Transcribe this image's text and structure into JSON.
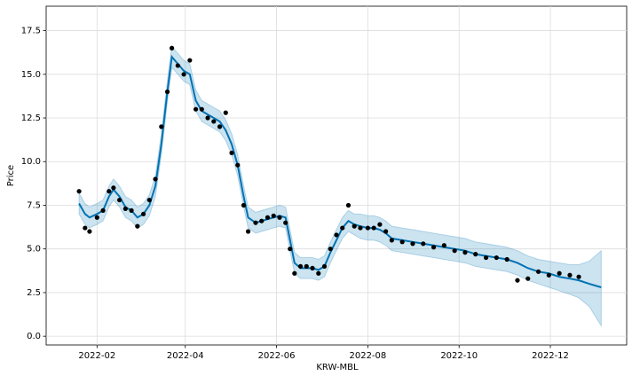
{
  "chart_data": {
    "type": "forecast",
    "xlabel": "KRW-MBL",
    "ylabel": "Price",
    "x": [
      "2022-01-20",
      "2022-01-24",
      "2022-01-27",
      "2022-02-01",
      "2022-02-05",
      "2022-02-09",
      "2022-02-12",
      "2022-02-16",
      "2022-02-20",
      "2022-02-24",
      "2022-02-28",
      "2022-03-04",
      "2022-03-08",
      "2022-03-12",
      "2022-03-16",
      "2022-03-20",
      "2022-03-23",
      "2022-03-27",
      "2022-03-31",
      "2022-04-04",
      "2022-04-08",
      "2022-04-12",
      "2022-04-16",
      "2022-04-20",
      "2022-04-24",
      "2022-04-28",
      "2022-05-02",
      "2022-05-06",
      "2022-05-10",
      "2022-05-13",
      "2022-05-18",
      "2022-05-22",
      "2022-05-26",
      "2022-05-30",
      "2022-06-03",
      "2022-06-07",
      "2022-06-10",
      "2022-06-13",
      "2022-06-17",
      "2022-06-21",
      "2022-06-25",
      "2022-06-29",
      "2022-07-03",
      "2022-07-07",
      "2022-07-11",
      "2022-07-15",
      "2022-07-19",
      "2022-07-23",
      "2022-07-27",
      "2022-08-01",
      "2022-08-05",
      "2022-08-09",
      "2022-08-13",
      "2022-08-17",
      "2022-08-24",
      "2022-08-31",
      "2022-09-07",
      "2022-09-14",
      "2022-09-21",
      "2022-09-28",
      "2022-10-05",
      "2022-10-12",
      "2022-10-19",
      "2022-10-26",
      "2022-11-02",
      "2022-11-09",
      "2022-11-16",
      "2022-11-23",
      "2022-11-30",
      "2022-12-07",
      "2022-12-14",
      "2022-12-20",
      "2022-12-27",
      "2023-01-04"
    ],
    "series": [
      {
        "color": "#000000",
        "mode": "markers",
        "values": [
          8.3,
          6.2,
          6.0,
          6.8,
          7.2,
          8.3,
          8.5,
          7.8,
          7.3,
          7.2,
          6.3,
          7.0,
          7.8,
          9.0,
          12.0,
          14.0,
          16.5,
          15.5,
          15.0,
          15.8,
          13.0,
          13.0,
          12.5,
          12.3,
          12.0,
          12.8,
          10.5,
          9.8,
          7.5,
          6.0,
          6.5,
          6.6,
          6.8,
          6.9,
          6.8,
          6.5,
          5.0,
          3.6,
          4.0,
          4.0,
          3.9,
          3.6,
          4.0,
          5.0,
          5.8,
          6.2,
          7.5,
          6.3,
          6.2,
          6.2,
          6.2,
          6.4,
          6.0,
          5.5,
          5.4,
          5.3,
          5.3,
          5.1,
          5.2,
          4.9,
          4.8,
          4.7,
          4.5,
          4.5,
          4.4,
          3.2,
          3.3,
          3.7,
          3.5,
          3.6,
          3.5,
          3.4,
          null,
          null
        ]
      },
      {
        "color": "#0072B2",
        "band_color": "#0072B2",
        "mode": "line",
        "values": [
          7.6,
          7.0,
          6.8,
          7.0,
          7.2,
          8.0,
          8.4,
          8.0,
          7.4,
          7.2,
          6.8,
          7.0,
          7.5,
          8.6,
          11.0,
          14.0,
          16.0,
          15.6,
          15.2,
          15.0,
          13.5,
          12.9,
          12.7,
          12.5,
          12.3,
          11.8,
          11.0,
          9.8,
          8.0,
          6.8,
          6.5,
          6.6,
          6.7,
          6.8,
          6.9,
          6.8,
          5.5,
          4.2,
          3.9,
          3.9,
          3.9,
          3.8,
          4.0,
          4.8,
          5.5,
          6.2,
          6.6,
          6.4,
          6.3,
          6.2,
          6.2,
          6.1,
          5.9,
          5.6,
          5.5,
          5.4,
          5.3,
          5.2,
          5.1,
          5.0,
          4.9,
          4.7,
          4.6,
          4.5,
          4.4,
          4.2,
          3.9,
          3.7,
          3.6,
          3.4,
          3.3,
          3.2,
          3.0,
          2.8
        ],
        "lower": [
          7.0,
          6.4,
          6.2,
          6.4,
          6.6,
          7.4,
          7.8,
          7.4,
          6.8,
          6.6,
          6.2,
          6.4,
          6.9,
          8.0,
          10.4,
          13.4,
          15.4,
          15.0,
          14.6,
          14.4,
          12.9,
          12.3,
          12.1,
          11.9,
          11.7,
          11.2,
          10.4,
          9.2,
          7.4,
          6.2,
          5.9,
          6.0,
          6.1,
          6.2,
          6.3,
          6.2,
          4.9,
          3.6,
          3.3,
          3.3,
          3.3,
          3.2,
          3.4,
          4.2,
          4.9,
          5.6,
          6.0,
          5.8,
          5.6,
          5.5,
          5.5,
          5.4,
          5.2,
          4.9,
          4.8,
          4.7,
          4.6,
          4.5,
          4.4,
          4.3,
          4.2,
          4.0,
          3.9,
          3.8,
          3.7,
          3.5,
          3.2,
          3.0,
          2.8,
          2.6,
          2.4,
          2.2,
          1.7,
          0.6
        ],
        "upper": [
          8.2,
          7.6,
          7.4,
          7.6,
          7.8,
          8.6,
          9.0,
          8.6,
          8.0,
          7.8,
          7.4,
          7.6,
          8.1,
          9.2,
          11.6,
          14.6,
          16.6,
          16.2,
          15.8,
          15.6,
          14.1,
          13.5,
          13.3,
          13.1,
          12.9,
          12.4,
          11.6,
          10.4,
          8.6,
          7.4,
          7.1,
          7.2,
          7.3,
          7.4,
          7.5,
          7.4,
          6.1,
          4.8,
          4.5,
          4.5,
          4.5,
          4.4,
          4.6,
          5.4,
          6.1,
          6.8,
          7.2,
          7.0,
          7.0,
          6.9,
          6.9,
          6.8,
          6.6,
          6.3,
          6.2,
          6.1,
          6.0,
          5.9,
          5.8,
          5.7,
          5.6,
          5.4,
          5.3,
          5.2,
          5.1,
          4.9,
          4.6,
          4.4,
          4.3,
          4.2,
          4.1,
          4.1,
          4.3,
          4.9
        ]
      }
    ],
    "xlim": [
      "2021-12-29",
      "2023-01-21"
    ],
    "xticks": [
      {
        "value": "2022-02-01",
        "label": "2022-02"
      },
      {
        "value": "2022-04-01",
        "label": "2022-04"
      },
      {
        "value": "2022-06-01",
        "label": "2022-06"
      },
      {
        "value": "2022-08-01",
        "label": "2022-08"
      },
      {
        "value": "2022-10-01",
        "label": "2022-10"
      },
      {
        "value": "2022-12-01",
        "label": "2022-12"
      }
    ],
    "ylim": [
      -0.5,
      18.9
    ],
    "yticks": [
      {
        "value": 0,
        "label": "0.0"
      },
      2.5,
      {
        "value": 5,
        "label": "5.0"
      },
      7.5,
      {
        "value": 10,
        "label": "10.0"
      },
      12.5,
      {
        "value": 15,
        "label": "15.0"
      },
      17.5
    ],
    "grid": true
  }
}
